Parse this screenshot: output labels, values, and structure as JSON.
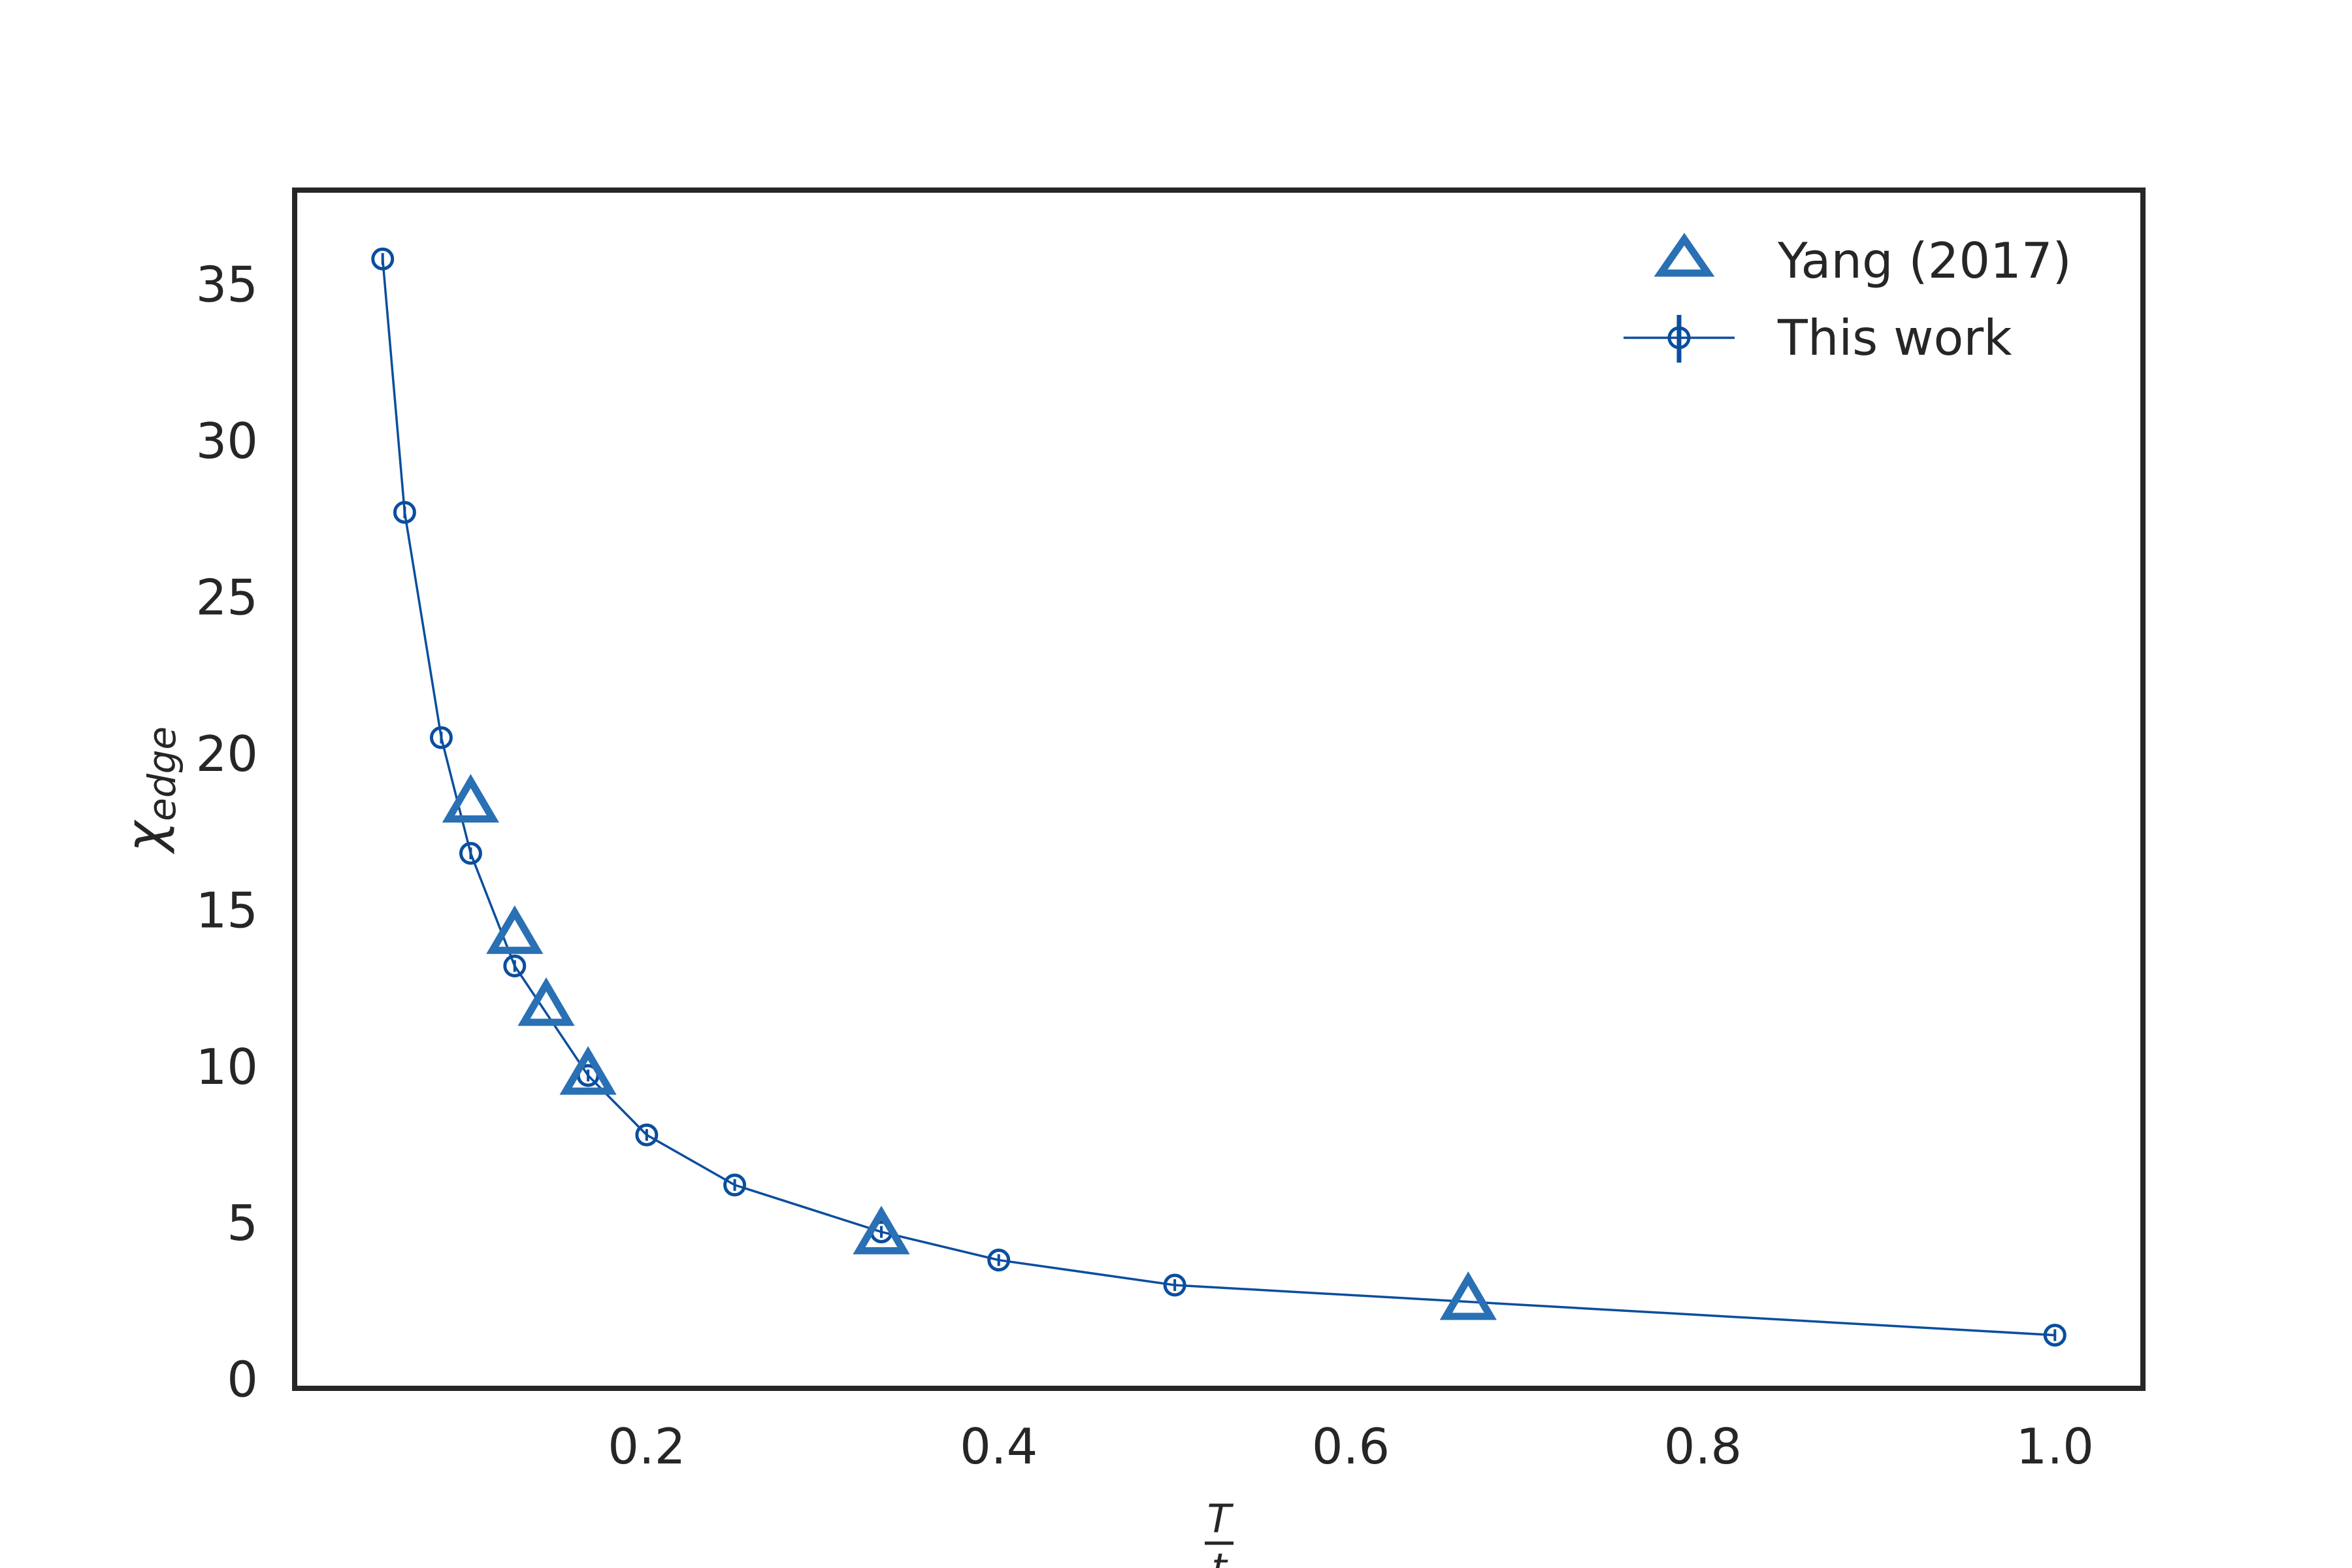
{
  "chart_data": {
    "type": "scatter",
    "xlabel_numerator": "T",
    "xlabel_denominator": "t",
    "ylabel_main": "χ",
    "ylabel_subscript": "edge",
    "xlim": [
      0.0,
      1.05
    ],
    "ylim": [
      -0.3,
      38.0
    ],
    "xticks": [
      0.2,
      0.4,
      0.6,
      0.8,
      1.0
    ],
    "xtick_labels": [
      "0.2",
      "0.4",
      "0.6",
      "0.8",
      "1.0"
    ],
    "yticks": [
      0,
      5,
      10,
      15,
      20,
      25,
      30,
      35
    ],
    "ytick_labels": [
      "0",
      "5",
      "10",
      "15",
      "20",
      "25",
      "30",
      "35"
    ],
    "grid": false,
    "legend_position": "top-right",
    "series": [
      {
        "name": "Yang (2017)",
        "marker": "triangle-open",
        "line": false,
        "color": "#2a70b4",
        "x": [
          0.1,
          0.125,
          0.1429,
          0.1667,
          0.3333,
          0.6667
        ],
        "y": [
          18.4,
          14.2,
          11.9,
          9.7,
          4.6,
          2.5
        ]
      },
      {
        "name": "This work",
        "marker": "circle-open",
        "line": true,
        "errorbars": true,
        "color": "#0a4e9e",
        "x": [
          0.05,
          0.0625,
          0.0833,
          0.1,
          0.125,
          0.1667,
          0.2,
          0.25,
          0.3333,
          0.4,
          0.5,
          1.0
        ],
        "y": [
          35.8,
          27.7,
          20.5,
          16.8,
          13.2,
          9.7,
          7.8,
          6.2,
          4.7,
          3.8,
          3.0,
          1.4
        ]
      }
    ]
  }
}
